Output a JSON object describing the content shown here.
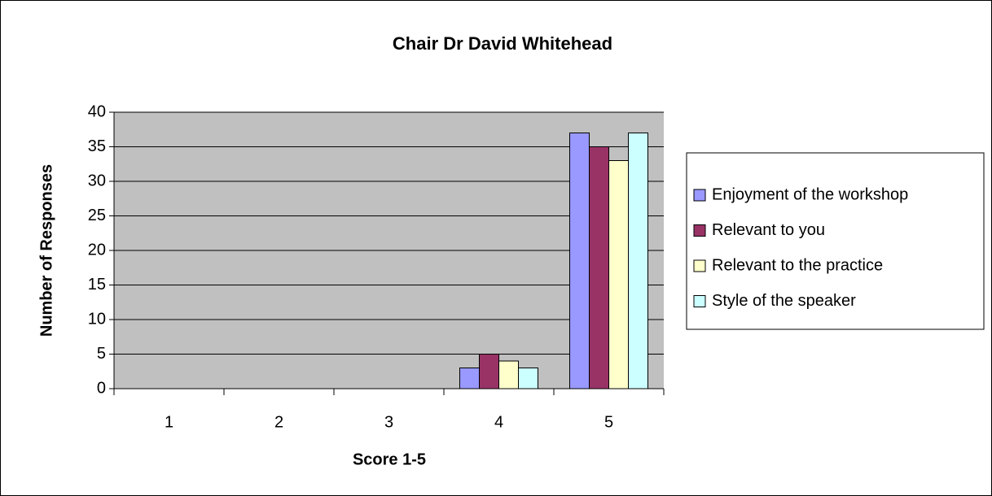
{
  "chart_data": {
    "type": "bar",
    "title": "Chair Dr David Whitehead",
    "x_label": "Score 1-5",
    "y_label": "Number of Responses",
    "categories": [
      "1",
      "2",
      "3",
      "4",
      "5"
    ],
    "series": [
      {
        "name": "Enjoyment of the workshop",
        "color": "#9999ff",
        "values": [
          0,
          0,
          0,
          3,
          37
        ]
      },
      {
        "name": "Relevant to you",
        "color": "#993366",
        "values": [
          0,
          0,
          0,
          5,
          35
        ]
      },
      {
        "name": "Relevant to the practice",
        "color": "#ffffcc",
        "values": [
          0,
          0,
          0,
          4,
          33
        ]
      },
      {
        "name": "Style of the speaker",
        "color": "#ccffff",
        "values": [
          0,
          0,
          0,
          3,
          37
        ]
      }
    ],
    "ylim": [
      0,
      40
    ],
    "yticks": [
      0,
      5,
      10,
      15,
      20,
      25,
      30,
      35,
      40
    ],
    "grid": true,
    "plot_background": "#c0c0c0",
    "legend": "right"
  }
}
